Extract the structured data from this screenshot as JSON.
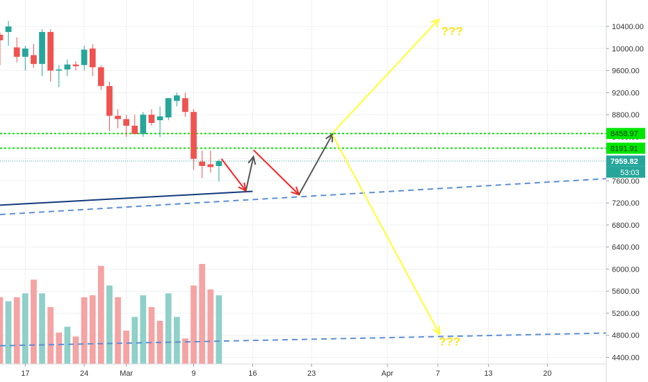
{
  "chart_data": {
    "type": "candlestick",
    "y_axis": {
      "ticks": [
        "10400.00",
        "10000.00",
        "9600.00",
        "9200.00",
        "8800.00",
        "8400.00",
        "8000.00",
        "7600.00",
        "7200.00",
        "6800.00",
        "6400.00",
        "6000.00",
        "5600.00",
        "5200.00",
        "4800.00",
        "4400.00"
      ],
      "tick_values": [
        10400,
        10000,
        9600,
        9200,
        8800,
        8400,
        8000,
        7600,
        7200,
        6800,
        6400,
        6000,
        5600,
        5200,
        4800,
        4400
      ],
      "range": [
        4280,
        10880
      ]
    },
    "x_axis": {
      "ticks": [
        "17",
        "24",
        "Mar",
        "9",
        "16",
        "23",
        "Apr",
        "7",
        "13",
        "20"
      ],
      "tick_days": [
        -12,
        -5,
        0,
        8,
        15,
        22,
        31,
        37,
        43,
        50
      ],
      "range_days": [
        -15,
        57
      ]
    },
    "candles": [
      {
        "d": -15,
        "o": 10250,
        "h": 10290,
        "l": 9700,
        "c": 10150
      },
      {
        "d": -14,
        "o": 10300,
        "h": 10500,
        "l": 10050,
        "c": 10400
      },
      {
        "d": -13,
        "o": 10020,
        "h": 10200,
        "l": 9750,
        "c": 9850
      },
      {
        "d": -12,
        "o": 9850,
        "h": 10050,
        "l": 9600,
        "c": 10000
      },
      {
        "d": -11,
        "o": 9880,
        "h": 10080,
        "l": 9650,
        "c": 9720
      },
      {
        "d": -10,
        "o": 9720,
        "h": 10350,
        "l": 9500,
        "c": 10300
      },
      {
        "d": -9,
        "o": 10300,
        "h": 10350,
        "l": 9400,
        "c": 9600
      },
      {
        "d": -8,
        "o": 9600,
        "h": 9700,
        "l": 9300,
        "c": 9620
      },
      {
        "d": -7,
        "o": 9620,
        "h": 9800,
        "l": 9500,
        "c": 9710
      },
      {
        "d": -6,
        "o": 9710,
        "h": 9770,
        "l": 9600,
        "c": 9680
      },
      {
        "d": -5,
        "o": 9700,
        "h": 10050,
        "l": 9600,
        "c": 9980
      },
      {
        "d": -4,
        "o": 10000,
        "h": 10080,
        "l": 9500,
        "c": 9660
      },
      {
        "d": -3,
        "o": 9660,
        "h": 9700,
        "l": 9250,
        "c": 9320
      },
      {
        "d": -2,
        "o": 9320,
        "h": 9400,
        "l": 8500,
        "c": 8780
      },
      {
        "d": -1,
        "o": 8780,
        "h": 8900,
        "l": 8550,
        "c": 8720
      },
      {
        "d": 0,
        "o": 8720,
        "h": 8800,
        "l": 8400,
        "c": 8600
      },
      {
        "d": 1,
        "o": 8600,
        "h": 8800,
        "l": 8450,
        "c": 8450
      },
      {
        "d": 2,
        "o": 8450,
        "h": 8850,
        "l": 8400,
        "c": 8800
      },
      {
        "d": 3,
        "o": 8800,
        "h": 8900,
        "l": 8600,
        "c": 8650
      },
      {
        "d": 4,
        "o": 8700,
        "h": 8950,
        "l": 8400,
        "c": 8770
      },
      {
        "d": 5,
        "o": 8750,
        "h": 9100,
        "l": 8700,
        "c": 9100
      },
      {
        "d": 6,
        "o": 9050,
        "h": 9200,
        "l": 8950,
        "c": 9150
      },
      {
        "d": 7,
        "o": 9100,
        "h": 9200,
        "l": 8760,
        "c": 8850
      },
      {
        "d": 8,
        "o": 8850,
        "h": 8900,
        "l": 7800,
        "c": 8000
      },
      {
        "d": 9,
        "o": 7950,
        "h": 8150,
        "l": 7650,
        "c": 7870
      },
      {
        "d": 10,
        "o": 7900,
        "h": 8150,
        "l": 7750,
        "c": 7850
      },
      {
        "d": 11,
        "o": 7870,
        "h": 7990,
        "l": 7590,
        "c": 7959.82
      }
    ],
    "volumes": [
      {
        "d": -15,
        "v": 3400,
        "up": false
      },
      {
        "d": -14,
        "v": 3200,
        "up": true
      },
      {
        "d": -13,
        "v": 3400,
        "up": false
      },
      {
        "d": -12,
        "v": 3600,
        "up": true
      },
      {
        "d": -11,
        "v": 4300,
        "up": false
      },
      {
        "d": -10,
        "v": 3600,
        "up": true
      },
      {
        "d": -9,
        "v": 2900,
        "up": false
      },
      {
        "d": -8,
        "v": 1600,
        "up": false
      },
      {
        "d": -7,
        "v": 1900,
        "up": true
      },
      {
        "d": -6,
        "v": 1400,
        "up": false
      },
      {
        "d": -5,
        "v": 3400,
        "up": false
      },
      {
        "d": -4,
        "v": 3500,
        "up": false
      },
      {
        "d": -3,
        "v": 5000,
        "up": false
      },
      {
        "d": -2,
        "v": 4000,
        "up": true
      },
      {
        "d": -1,
        "v": 3400,
        "up": false
      },
      {
        "d": 0,
        "v": 1700,
        "up": false
      },
      {
        "d": 1,
        "v": 2400,
        "up": true
      },
      {
        "d": 2,
        "v": 3500,
        "up": true
      },
      {
        "d": 3,
        "v": 2900,
        "up": false
      },
      {
        "d": 4,
        "v": 2200,
        "up": false
      },
      {
        "d": 5,
        "v": 3600,
        "up": true
      },
      {
        "d": 6,
        "v": 2400,
        "up": true
      },
      {
        "d": 7,
        "v": 1300,
        "up": false
      },
      {
        "d": 8,
        "v": 4000,
        "up": false
      },
      {
        "d": 9,
        "v": 5100,
        "up": false
      },
      {
        "d": 10,
        "v": 3800,
        "up": false
      },
      {
        "d": 11,
        "v": 3500,
        "up": true
      }
    ],
    "levels": [
      {
        "value": 8458.97,
        "label": "8458.97"
      },
      {
        "value": 8191.91,
        "label": "8191.91"
      }
    ],
    "current_price": {
      "value": 7959.82,
      "label": "7959.82",
      "timer": "53:03"
    },
    "trend_lines": [
      {
        "kind": "solid",
        "from": {
          "d": -15,
          "p": 7160
        },
        "to": {
          "d": 15,
          "p": 7410
        }
      },
      {
        "kind": "dashed",
        "from": {
          "d": -15,
          "p": 6990
        },
        "to": {
          "d": 57,
          "p": 7640
        }
      },
      {
        "kind": "dashed",
        "from": {
          "d": -15,
          "p": 4610
        },
        "to": {
          "d": 57,
          "p": 4840
        }
      }
    ],
    "projection_arrows": [
      {
        "color": "red",
        "from": {
          "d": 11.3,
          "p": 8000
        },
        "to": {
          "d": 14.2,
          "p": 7420
        }
      },
      {
        "color": "gray",
        "from": {
          "d": 14.2,
          "p": 7420
        },
        "to": {
          "d": 15.1,
          "p": 8040
        }
      },
      {
        "color": "red",
        "from": {
          "d": 15.1,
          "p": 8160
        },
        "to": {
          "d": 20.5,
          "p": 7350
        }
      },
      {
        "color": "gray",
        "from": {
          "d": 20.5,
          "p": 7350
        },
        "to": {
          "d": 24.5,
          "p": 8450
        }
      },
      {
        "color": "yellow",
        "from": {
          "d": 24.5,
          "p": 8470
        },
        "to": {
          "d": 37.1,
          "p": 10530
        }
      },
      {
        "color": "yellow",
        "from": {
          "d": 24.5,
          "p": 8430
        },
        "to": {
          "d": 37.2,
          "p": 4820
        }
      }
    ],
    "annotations": [
      {
        "text": "???",
        "d": 37.4,
        "p": 10320
      },
      {
        "text": "???",
        "d": 37.1,
        "p": 4690
      }
    ],
    "colors": {
      "up": "#26a69a",
      "down": "#ef5350",
      "volume_up": "#8fd0c9",
      "volume_down": "#f5a3a3",
      "level": "#00e600",
      "current": "#26a69a",
      "trend_solid": "#153a7a",
      "trend_dashed": "#5b8ed6",
      "arrow_red": "#ff1f1f",
      "arrow_gray": "#555555",
      "arrow_yellow": "#ffff2e",
      "annotation": "#ffe31a",
      "grid": "#eef0f3",
      "axis_text": "#333333"
    }
  }
}
